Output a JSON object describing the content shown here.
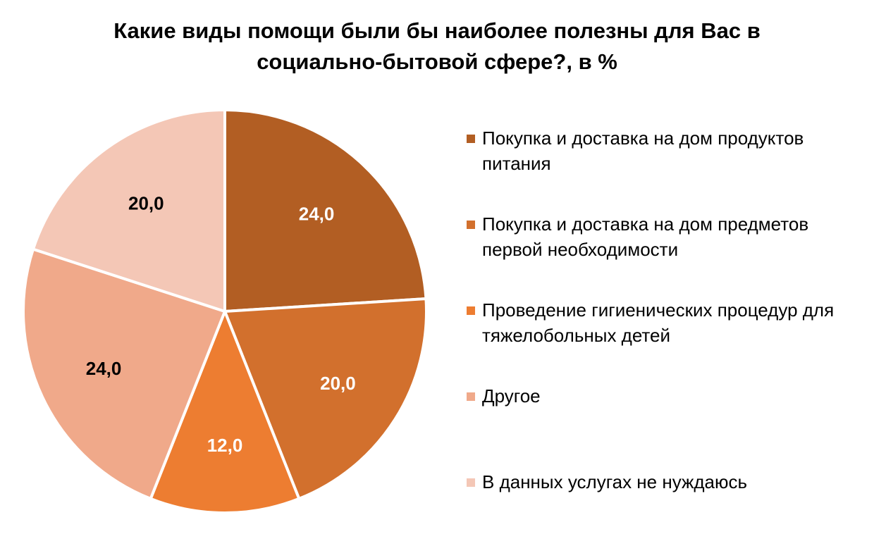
{
  "chart_data": {
    "type": "pie",
    "title": "Какие виды помощи были бы наиболее полезны для Вас в\nсоциально-бытовой сфере?, в %",
    "categories": [
      "Покупка и доставка на дом продуктов питания",
      "Покупка и доставка на дом предметов первой необходимости",
      "Проведение гигиенических процедур для тяжелобольных детей",
      "Другое",
      "В данных услугах не нуждаюсь"
    ],
    "values": [
      24.0,
      20.0,
      12.0,
      24.0,
      20.0
    ],
    "data_labels": [
      "24,0",
      "20,0",
      "12,0",
      "24,0",
      "20,0"
    ],
    "colors": [
      "#B25E23",
      "#D2702D",
      "#ED7D31",
      "#F0A98A",
      "#F4C7B6"
    ],
    "label_colors": [
      "#ffffff",
      "#ffffff",
      "#ffffff",
      "#000000",
      "#000000"
    ],
    "legend_position": "right",
    "start_angle": "12 o'clock",
    "direction": "clockwise"
  }
}
